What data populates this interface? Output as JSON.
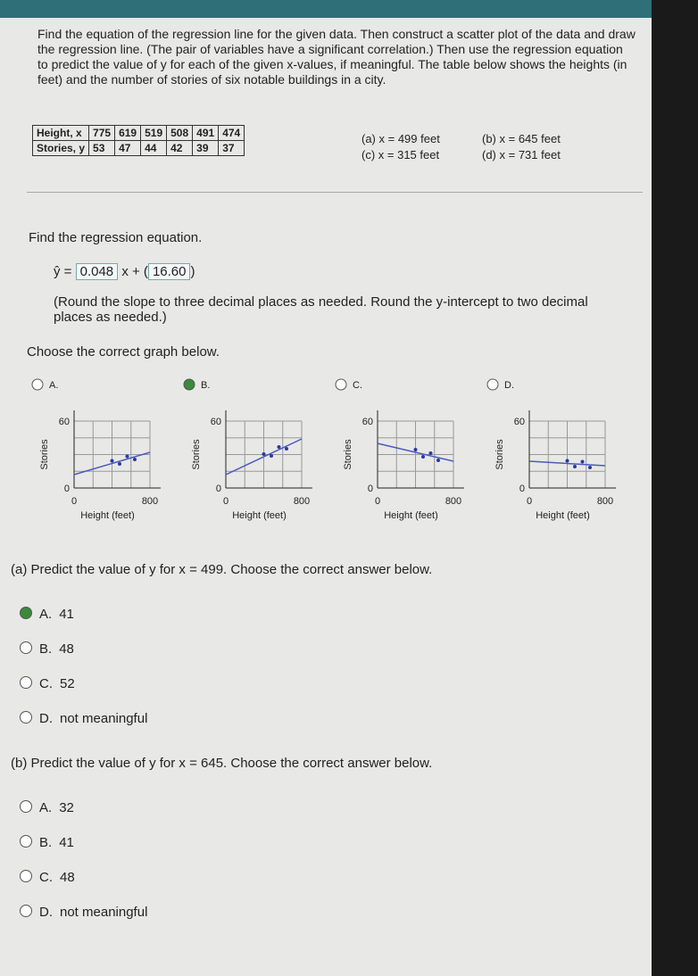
{
  "problem": {
    "text": "Find the equation of the regression line for the given data. Then construct a scatter plot of the data and draw the regression line. (The pair of variables have a significant correlation.) Then use the regression equation to predict the value of y for each of the given x-values, if meaningful. The table below shows the heights (in feet) and the number of stories of six notable buildings in a city.",
    "table": {
      "rows": [
        [
          "Height, x",
          775,
          619,
          519,
          508,
          491,
          474
        ],
        [
          "Stories, y",
          53,
          47,
          44,
          42,
          39,
          37
        ]
      ]
    },
    "parts": [
      "(a) x = 499 feet",
      "(b) x = 645 feet",
      "(c) x = 315 feet",
      "(d) x = 731 feet"
    ]
  },
  "regression": {
    "prompt": "Find the regression equation.",
    "y_hat": "ŷ =",
    "slope": 0.048,
    "x_plus": "x +",
    "intercept": "16.60",
    "note": "(Round the slope to three decimal places as needed. Round the y-intercept to two decimal places as needed.)"
  },
  "graph_question": {
    "prompt": "Choose the correct graph below.",
    "selected": 1,
    "options": [
      {
        "letter": "A.",
        "y_label": "Stories",
        "x_label": "Height (feet)",
        "y_ticks": [
          60,
          0
        ],
        "x_ticks": [
          0,
          800
        ]
      },
      {
        "letter": "B.",
        "y_label": "Stories",
        "x_label": "Height (feet)",
        "y_ticks": [
          60,
          0
        ],
        "x_ticks": [
          0,
          800
        ]
      },
      {
        "letter": "C.",
        "y_label": "Stories",
        "x_label": "Height (feet)",
        "y_ticks": [
          60,
          0
        ],
        "x_ticks": [
          0,
          800
        ]
      },
      {
        "letter": "D.",
        "y_label": "Stories",
        "x_label": "Height (feet)",
        "y_ticks": [
          60,
          0
        ],
        "x_ticks": [
          0,
          800
        ]
      }
    ]
  },
  "part_a": {
    "prompt": "(a) Predict the value of y for x = 499. Choose the correct answer below.",
    "selected": 0,
    "choices": [
      {
        "letter": "A.",
        "text": "41"
      },
      {
        "letter": "B.",
        "text": "48"
      },
      {
        "letter": "C.",
        "text": "52"
      },
      {
        "letter": "D.",
        "text": "not meaningful"
      }
    ]
  },
  "part_b": {
    "prompt": "(b) Predict the value of y for x = 645. Choose the correct answer below.",
    "selected": null,
    "choices": [
      {
        "letter": "A.",
        "text": "32"
      },
      {
        "letter": "B.",
        "text": "41"
      },
      {
        "letter": "C.",
        "text": "48"
      },
      {
        "letter": "D.",
        "text": "not meaningful"
      }
    ]
  }
}
